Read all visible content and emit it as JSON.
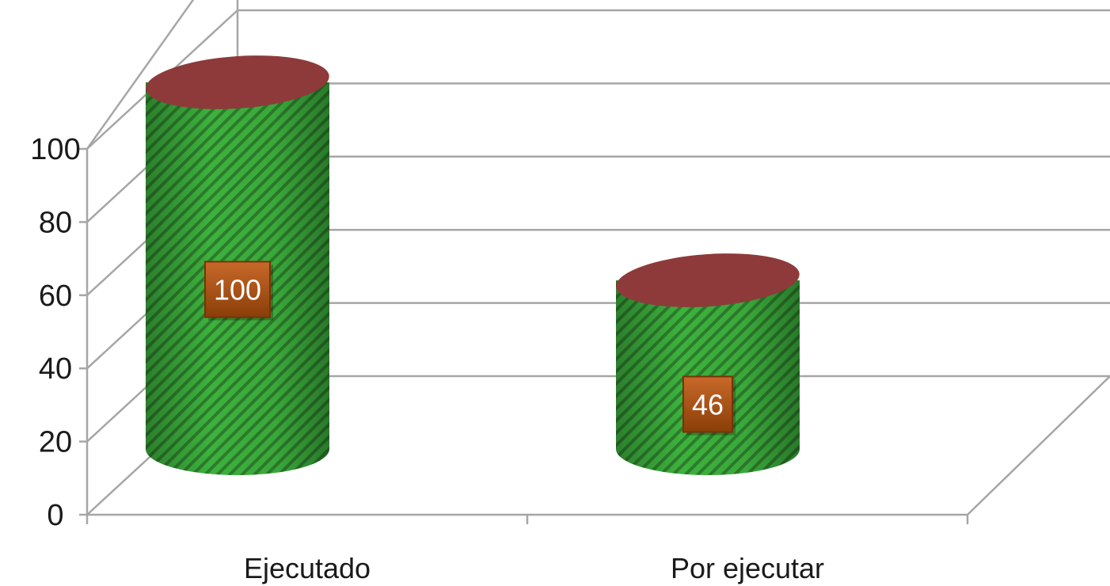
{
  "chart_data": {
    "type": "bar",
    "style": "3d-cylinder",
    "categories": [
      "Ejecutado",
      "Por ejecutar"
    ],
    "values": [
      100,
      46
    ],
    "data_labels": [
      "100",
      "46"
    ],
    "title": "",
    "xlabel": "",
    "ylabel": "",
    "ylim": [
      0,
      100
    ],
    "yticks": [
      "0",
      "20",
      "40",
      "60",
      "80",
      "100"
    ],
    "grid": true,
    "legend": "none",
    "colors": {
      "bar_body": "#3aa83a",
      "bar_stripe": "#2a7a2a",
      "bar_top": "#8e3a3a",
      "data_label_bg": "#b35a10",
      "grid": "#a6a6a6"
    }
  }
}
